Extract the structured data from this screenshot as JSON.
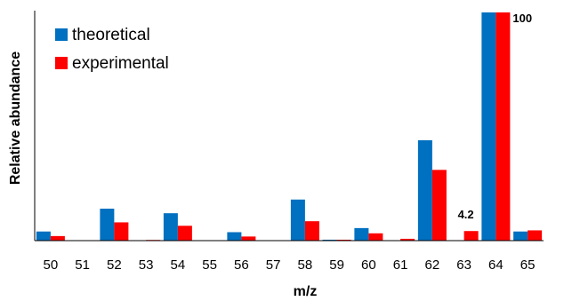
{
  "chart_data": {
    "type": "bar",
    "title": "",
    "xlabel": "m/z",
    "ylabel": "Relative abundance",
    "categories": [
      "50",
      "51",
      "52",
      "53",
      "54",
      "55",
      "56",
      "57",
      "58",
      "59",
      "60",
      "61",
      "62",
      "63",
      "64",
      "65"
    ],
    "series": [
      {
        "name": "theoretical",
        "color": "#0070C0",
        "values": [
          4.0,
          0.0,
          14.0,
          0.0,
          12.0,
          0.0,
          3.7,
          0.0,
          18.0,
          0.4,
          5.5,
          0.0,
          44.0,
          0.0,
          100.0,
          4.0
        ]
      },
      {
        "name": "experimental",
        "color": "#FF0000",
        "values": [
          2.0,
          0.0,
          8.0,
          0.3,
          6.5,
          0.0,
          1.8,
          0.0,
          8.5,
          0.4,
          3.2,
          0.8,
          31.0,
          4.2,
          100.0,
          4.5
        ]
      }
    ],
    "ylim": [
      0,
      100
    ],
    "legend_position": "top-left",
    "grid": false,
    "annotations": [
      {
        "category": "63",
        "series": "experimental",
        "text": "4.2"
      },
      {
        "category": "64",
        "series": "experimental",
        "text": "100"
      }
    ]
  }
}
